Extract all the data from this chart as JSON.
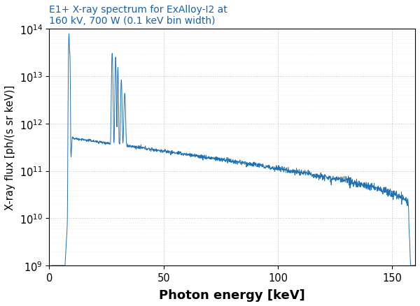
{
  "title_line1": "E1+ X-ray spectrum for ExAlloy-I2 at",
  "title_line2": "160 kV, 700 W (0.1 keV bin width)",
  "xlabel": "Photon energy [keV]",
  "ylabel": "X-ray flux [ph/(s sr keV)]",
  "line_color": "#2171b5",
  "xlim": [
    0,
    160
  ],
  "ylim_log": [
    9,
    14
  ],
  "background_color": "#ffffff",
  "title_color": "#1a5fa8",
  "figsize": [
    6.0,
    4.39
  ],
  "dpi": 100
}
